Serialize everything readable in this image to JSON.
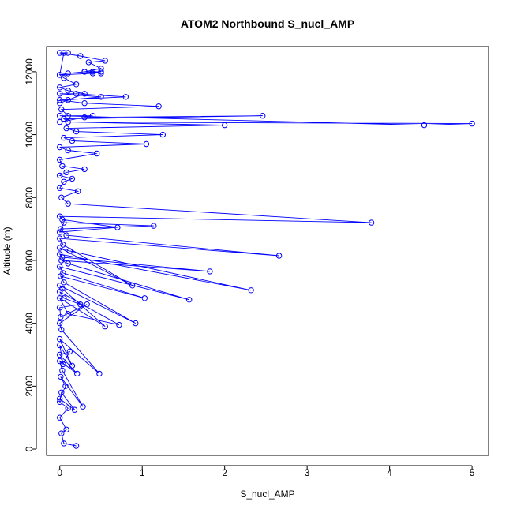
{
  "chart_data": {
    "type": "line",
    "title": "ATOM2 Northbound S_nucl_AMP",
    "xlabel": "S_nucl_AMP",
    "ylabel": "Altitude (m)",
    "xlim": [
      -0.16,
      5.2
    ],
    "ylim": [
      -200,
      12800
    ],
    "xticks": [
      0,
      1,
      2,
      3,
      4,
      5
    ],
    "yticks": [
      0,
      2000,
      4000,
      6000,
      8000,
      10000,
      12000
    ],
    "grid": false,
    "legend": "none",
    "series_style": {
      "color": "#0000ff",
      "marker": "open-circle",
      "line": true
    },
    "series": [
      {
        "x": [
          0.2,
          0.05,
          0.02,
          0.08,
          0.0,
          0.1,
          0.0,
          0.02,
          0.18,
          0.0,
          0.07,
          0.01,
          0.28,
          0.03,
          0.0,
          0.21,
          0.0,
          0.12,
          0.04,
          0.0,
          0.15,
          0.0,
          0.48,
          0.02,
          0.0,
          0.33,
          0.01,
          0.0,
          0.25,
          0.05,
          0.0,
          0.72,
          0.1,
          0.0,
          0.55,
          0.03,
          0.0,
          0.92,
          0.05,
          0.01,
          1.03,
          0.04,
          0.0,
          1.57,
          0.1,
          0.02,
          1.82,
          0.03,
          0.0,
          2.32,
          0.12,
          0.0,
          0.88,
          0.04,
          0.0,
          2.66,
          0.08,
          0.01,
          1.14,
          0.05,
          0.0,
          0.7,
          0.03,
          0.0,
          3.78,
          0.1,
          0.02,
          0.22,
          0.0,
          0.05,
          0.15,
          0.0,
          0.08,
          0.3,
          0.03,
          0.0,
          0.45,
          0.1,
          0.0,
          1.05,
          0.15,
          0.05,
          1.25,
          0.2,
          0.08,
          2.0,
          0.1,
          0.05,
          2.46,
          0.3,
          0.0,
          5.0,
          4.42,
          0.0,
          0.4,
          0.1,
          0.02,
          1.2,
          0.3,
          0.0,
          0.8,
          0.2,
          0.0,
          0.5,
          0.1,
          0.0,
          0.3,
          0.1,
          0.0,
          0.2,
          0.05,
          0.0,
          0.1,
          0.3,
          0.5,
          0.35,
          0.55,
          0.25,
          0.0,
          0.1,
          0.05,
          0.0,
          0.4,
          0.5,
          0.3,
          0.5,
          0.4
        ],
        "y": [
          100,
          180,
          500,
          620,
          1000,
          1300,
          1500,
          1800,
          1250,
          1600,
          2000,
          2300,
          1350,
          2500,
          2800,
          2400,
          3000,
          3100,
          2700,
          3300,
          2650,
          3500,
          2400,
          3800,
          4000,
          4600,
          4200,
          4500,
          4600,
          4800,
          5000,
          3950,
          4300,
          4800,
          3900,
          5100,
          5200,
          4000,
          5300,
          5500,
          4800,
          5600,
          5800,
          4750,
          5900,
          6000,
          5650,
          6100,
          6200,
          5050,
          6300,
          6400,
          5200,
          6500,
          6700,
          6150,
          6800,
          7000,
          7100,
          7200,
          6900,
          7050,
          7300,
          7400,
          7200,
          7800,
          8000,
          8200,
          8300,
          8500,
          8600,
          8700,
          8800,
          8900,
          9000,
          9200,
          9400,
          9500,
          9600,
          9700,
          9800,
          9900,
          10000,
          10100,
          10200,
          10300,
          10400,
          10500,
          10600,
          10550,
          10400,
          10350,
          10300,
          10600,
          10600,
          10600,
          10800,
          10900,
          11000,
          11100,
          11200,
          11300,
          11300,
          11200,
          11100,
          11000,
          11300,
          11400,
          11500,
          11600,
          11800,
          11900,
          11950,
          12000,
          12100,
          12300,
          12350,
          12500,
          12600,
          12600,
          12600,
          11900,
          11950,
          12000,
          12000,
          11950,
          12000
        ]
      }
    ]
  }
}
